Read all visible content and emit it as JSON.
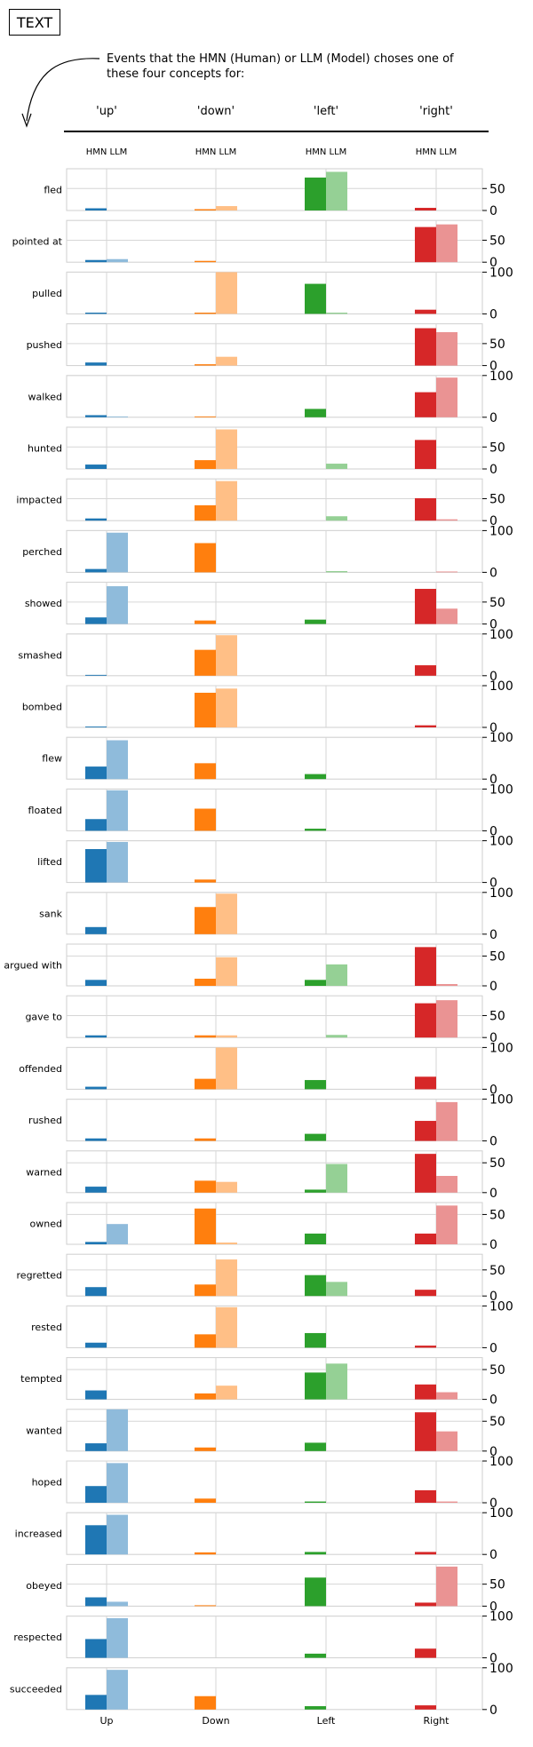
{
  "header": {
    "tag": "TEXT",
    "caption": "Events that the HMN (Human) or LLM (Model) choses one of these four concepts for:",
    "concepts": [
      "'up'",
      "'down'",
      "'left'",
      "'right'"
    ],
    "series_label": "HMN LLM"
  },
  "chart_data": {
    "type": "bar",
    "categories": [
      "Up",
      "Down",
      "Left",
      "Right"
    ],
    "series": [
      {
        "name": "HMN"
      },
      {
        "name": "LLM"
      }
    ],
    "colors": {
      "Up": {
        "HMN": "#1f77b4",
        "LLM": "#8fbbdb"
      },
      "Down": {
        "HMN": "#ff7f0e",
        "LLM": "#ffbf86"
      },
      "Left": {
        "HMN": "#2ca02c",
        "LLM": "#95d095"
      },
      "Right": {
        "HMN": "#d62728",
        "LLM": "#ea9393"
      }
    },
    "grid": true,
    "rows": [
      {
        "label": "fled",
        "ylim": [
          0,
          95
        ],
        "yticks": [
          0,
          50
        ],
        "HMN": [
          5,
          3,
          75,
          6
        ],
        "LLM": [
          0,
          10,
          88,
          0
        ]
      },
      {
        "label": "pointed at",
        "ylim": [
          0,
          95
        ],
        "yticks": [
          0,
          50
        ],
        "HMN": [
          5,
          3,
          0,
          80
        ],
        "LLM": [
          7,
          0,
          0,
          86
        ]
      },
      {
        "label": "pulled",
        "ylim": [
          0,
          100
        ],
        "yticks": [
          0,
          100
        ],
        "HMN": [
          3,
          3,
          72,
          10
        ],
        "LLM": [
          0,
          100,
          3,
          0
        ]
      },
      {
        "label": "pushed",
        "ylim": [
          0,
          95
        ],
        "yticks": [
          0,
          50
        ],
        "HMN": [
          7,
          3,
          0,
          85
        ],
        "LLM": [
          0,
          20,
          0,
          76
        ]
      },
      {
        "label": "walked",
        "ylim": [
          0,
          100
        ],
        "yticks": [
          0,
          100
        ],
        "HMN": [
          5,
          2,
          20,
          60
        ],
        "LLM": [
          2,
          0,
          0,
          95
        ]
      },
      {
        "label": "hunted",
        "ylim": [
          0,
          95
        ],
        "yticks": [
          0,
          50
        ],
        "HMN": [
          10,
          20,
          0,
          66
        ],
        "LLM": [
          0,
          90,
          12,
          0
        ]
      },
      {
        "label": "impacted",
        "ylim": [
          0,
          95
        ],
        "yticks": [
          0,
          50
        ],
        "HMN": [
          5,
          35,
          0,
          51
        ],
        "LLM": [
          0,
          90,
          10,
          3
        ]
      },
      {
        "label": "perched",
        "ylim": [
          0,
          100
        ],
        "yticks": [
          0,
          100
        ],
        "HMN": [
          8,
          70,
          0,
          0
        ],
        "LLM": [
          95,
          0,
          3,
          2
        ]
      },
      {
        "label": "showed",
        "ylim": [
          0,
          95
        ],
        "yticks": [
          0,
          50
        ],
        "HMN": [
          15,
          8,
          10,
          80
        ],
        "LLM": [
          86,
          0,
          0,
          35
        ]
      },
      {
        "label": "smashed",
        "ylim": [
          0,
          100
        ],
        "yticks": [
          0,
          100
        ],
        "HMN": [
          2,
          62,
          0,
          25
        ],
        "LLM": [
          0,
          97,
          0,
          0
        ]
      },
      {
        "label": "bombed",
        "ylim": [
          0,
          100
        ],
        "yticks": [
          0,
          100
        ],
        "HMN": [
          2,
          83,
          0,
          5
        ],
        "LLM": [
          0,
          93,
          0,
          0
        ]
      },
      {
        "label": "flew",
        "ylim": [
          0,
          100
        ],
        "yticks": [
          0,
          100
        ],
        "HMN": [
          30,
          38,
          12,
          0
        ],
        "LLM": [
          93,
          0,
          0,
          0
        ]
      },
      {
        "label": "floated",
        "ylim": [
          0,
          100
        ],
        "yticks": [
          0,
          100
        ],
        "HMN": [
          28,
          53,
          5,
          0
        ],
        "LLM": [
          97,
          0,
          0,
          0
        ]
      },
      {
        "label": "lifted",
        "ylim": [
          0,
          100
        ],
        "yticks": [
          0,
          100
        ],
        "HMN": [
          80,
          7,
          0,
          0
        ],
        "LLM": [
          97,
          0,
          0,
          0
        ]
      },
      {
        "label": "sank",
        "ylim": [
          0,
          100
        ],
        "yticks": [
          0,
          100
        ],
        "HMN": [
          17,
          65,
          0,
          0
        ],
        "LLM": [
          0,
          97,
          0,
          0
        ]
      },
      {
        "label": "argued with",
        "ylim": [
          0,
          70
        ],
        "yticks": [
          0,
          50
        ],
        "HMN": [
          10,
          12,
          10,
          65
        ],
        "LLM": [
          0,
          48,
          36,
          3
        ]
      },
      {
        "label": "gave to",
        "ylim": [
          0,
          95
        ],
        "yticks": [
          0,
          50
        ],
        "HMN": [
          5,
          5,
          0,
          78
        ],
        "LLM": [
          0,
          5,
          6,
          85
        ]
      },
      {
        "label": "offended",
        "ylim": [
          0,
          100
        ],
        "yticks": [
          0,
          100
        ],
        "HMN": [
          6,
          25,
          22,
          30
        ],
        "LLM": [
          0,
          100,
          0,
          0
        ]
      },
      {
        "label": "rushed",
        "ylim": [
          0,
          100
        ],
        "yticks": [
          0,
          100
        ],
        "HMN": [
          6,
          6,
          17,
          48
        ],
        "LLM": [
          0,
          0,
          0,
          93
        ]
      },
      {
        "label": "warned",
        "ylim": [
          0,
          70
        ],
        "yticks": [
          0,
          50
        ],
        "HMN": [
          10,
          20,
          5,
          65
        ],
        "LLM": [
          0,
          18,
          48,
          28
        ]
      },
      {
        "label": "owned",
        "ylim": [
          0,
          70
        ],
        "yticks": [
          0,
          50
        ],
        "HMN": [
          4,
          60,
          18,
          18
        ],
        "LLM": [
          34,
          3,
          0,
          65
        ]
      },
      {
        "label": "regretted",
        "ylim": [
          0,
          80
        ],
        "yticks": [
          0,
          50
        ],
        "HMN": [
          17,
          22,
          40,
          12
        ],
        "LLM": [
          0,
          70,
          27,
          0
        ]
      },
      {
        "label": "rested",
        "ylim": [
          0,
          100
        ],
        "yticks": [
          0,
          100
        ],
        "HMN": [
          12,
          32,
          35,
          5
        ],
        "LLM": [
          0,
          97,
          0,
          0
        ]
      },
      {
        "label": "tempted",
        "ylim": [
          0,
          70
        ],
        "yticks": [
          0,
          50
        ],
        "HMN": [
          15,
          10,
          45,
          25
        ],
        "LLM": [
          0,
          23,
          60,
          12
        ]
      },
      {
        "label": "wanted",
        "ylim": [
          0,
          70
        ],
        "yticks": [
          0,
          50
        ],
        "HMN": [
          13,
          6,
          14,
          65
        ],
        "LLM": [
          70,
          0,
          0,
          33
        ]
      },
      {
        "label": "hoped",
        "ylim": [
          0,
          100
        ],
        "yticks": [
          0,
          100
        ],
        "HMN": [
          40,
          10,
          3,
          30
        ],
        "LLM": [
          95,
          0,
          0,
          3
        ]
      },
      {
        "label": "increased",
        "ylim": [
          0,
          100
        ],
        "yticks": [
          0,
          100
        ],
        "HMN": [
          70,
          5,
          6,
          6
        ],
        "LLM": [
          95,
          0,
          0,
          0
        ]
      },
      {
        "label": "obeyed",
        "ylim": [
          0,
          95
        ],
        "yticks": [
          0,
          50
        ],
        "HMN": [
          20,
          2,
          65,
          8
        ],
        "LLM": [
          10,
          0,
          0,
          90
        ]
      },
      {
        "label": "respected",
        "ylim": [
          0,
          100
        ],
        "yticks": [
          0,
          100
        ],
        "HMN": [
          45,
          0,
          10,
          22
        ],
        "LLM": [
          95,
          0,
          0,
          0
        ]
      },
      {
        "label": "succeeded",
        "ylim": [
          0,
          100
        ],
        "yticks": [
          0,
          100
        ],
        "HMN": [
          35,
          32,
          8,
          10
        ],
        "LLM": [
          95,
          0,
          0,
          0
        ]
      }
    ]
  }
}
